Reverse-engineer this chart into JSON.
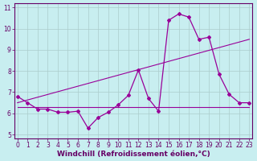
{
  "hours": [
    0,
    1,
    2,
    3,
    4,
    5,
    6,
    7,
    8,
    9,
    10,
    11,
    12,
    13,
    14,
    15,
    16,
    17,
    18,
    19,
    20,
    21,
    22,
    23
  ],
  "windchill": [
    6.8,
    6.5,
    6.2,
    6.2,
    6.05,
    6.05,
    6.1,
    5.3,
    5.8,
    6.05,
    6.4,
    6.85,
    8.05,
    6.7,
    6.1,
    10.4,
    10.7,
    10.55,
    9.5,
    9.6,
    7.85,
    6.9,
    6.5,
    6.5
  ],
  "flat_line_x": [
    0,
    23
  ],
  "flat_line_y": [
    6.3,
    6.3
  ],
  "trend_line_x": [
    0,
    23
  ],
  "trend_line_y": [
    6.5,
    9.5
  ],
  "line_color": "#990099",
  "bg_color": "#c8eef0",
  "grid_color": "#aacccc",
  "axis_color": "#660066",
  "xlabel": "Windchill (Refroidissement éolien,°C)",
  "ylim_min": 4.8,
  "ylim_max": 11.2,
  "xlim_min": -0.3,
  "xlim_max": 23.3,
  "yticks": [
    5,
    6,
    7,
    8,
    9,
    10,
    11
  ],
  "xticks": [
    0,
    1,
    2,
    3,
    4,
    5,
    6,
    7,
    8,
    9,
    10,
    11,
    12,
    13,
    14,
    15,
    16,
    17,
    18,
    19,
    20,
    21,
    22,
    23
  ],
  "fontsize_ticks": 5.5,
  "fontsize_xlabel": 6.5
}
